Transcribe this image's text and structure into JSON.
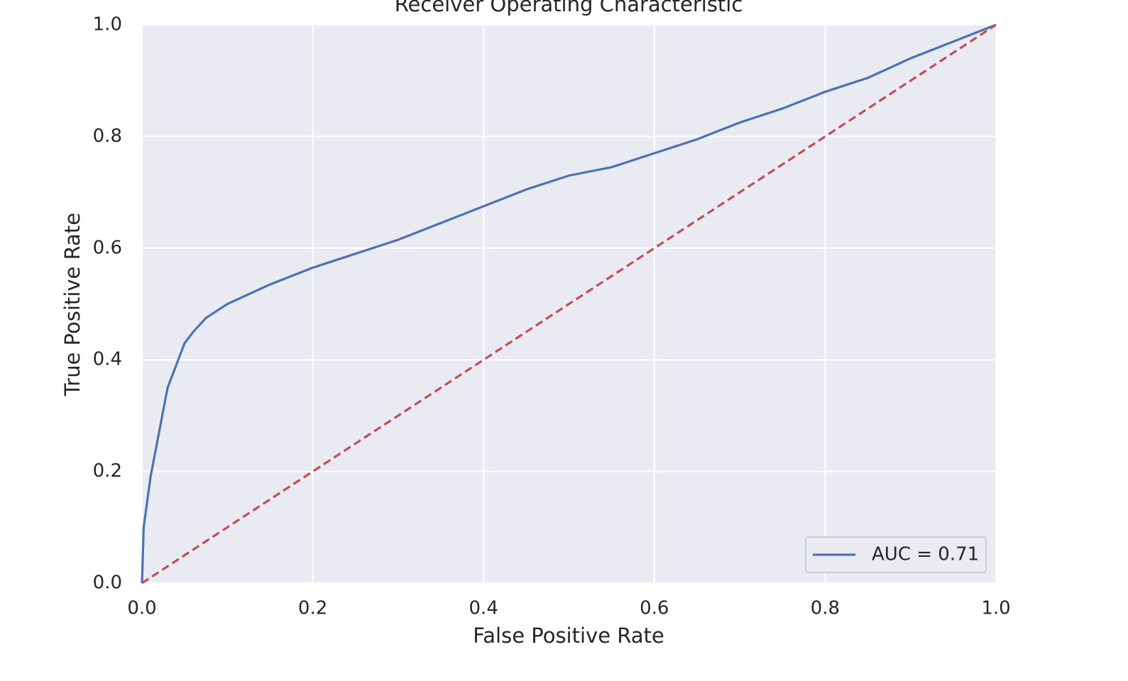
{
  "chart_data": {
    "type": "line",
    "title": "Receiver Operating Characteristic",
    "x_label": "False Positive Rate",
    "y_label": "True Positive Rate",
    "x": [
      0,
      0.002,
      0.01,
      0.02,
      0.03,
      0.04,
      0.05,
      0.06,
      0.075,
      0.1,
      0.15,
      0.2,
      0.25,
      0.3,
      0.35,
      0.4,
      0.45,
      0.5,
      0.55,
      0.6,
      0.65,
      0.7,
      0.75,
      0.8,
      0.85,
      0.9,
      0.95,
      1
    ],
    "series": [
      {
        "name": "AUC = 0.71",
        "color": "#4c72b0",
        "values": [
          0,
          0.1,
          0.19,
          0.27,
          0.35,
          0.39,
          0.43,
          0.45,
          0.475,
          0.5,
          0.535,
          0.565,
          0.59,
          0.615,
          0.645,
          0.675,
          0.705,
          0.73,
          0.745,
          0.77,
          0.795,
          0.825,
          0.85,
          0.88,
          0.905,
          0.94,
          0.97,
          1
        ]
      }
    ],
    "reference": {
      "x": [
        0,
        1
      ],
      "values": [
        0,
        1
      ],
      "color": "#c44e52",
      "dashed": true
    },
    "xlim": [
      0,
      1
    ],
    "ylim": [
      0,
      1
    ],
    "xticks": [
      {
        "value": 0,
        "label": "0.0"
      },
      0.2,
      0.4,
      0.6,
      0.8,
      {
        "value": 1,
        "label": "1.0"
      }
    ],
    "yticks": [
      {
        "value": 0,
        "label": "0.0"
      },
      0.2,
      0.4,
      0.6,
      0.8,
      {
        "value": 1,
        "label": "1.0"
      }
    ],
    "grid": true,
    "legend": "lower right",
    "background": "#eaeaf2"
  }
}
